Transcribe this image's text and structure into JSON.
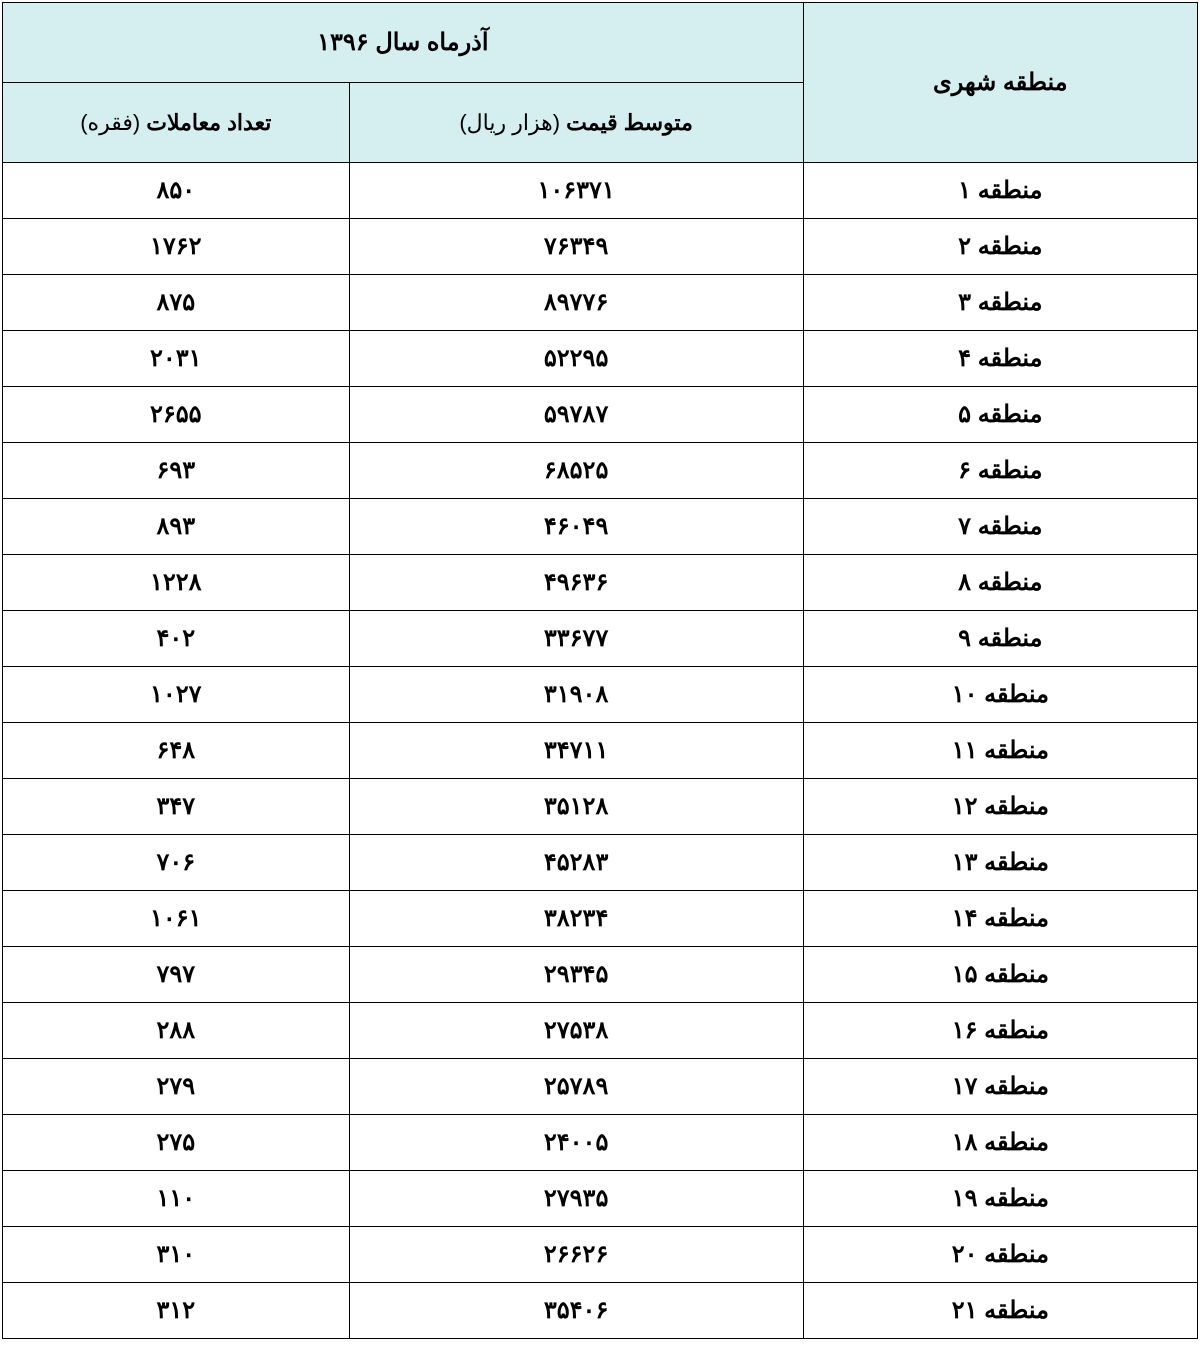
{
  "table": {
    "type": "table",
    "background_color": "#ffffff",
    "border_color": "#000000",
    "header_bg": "#d5eef0",
    "text_color": "#000000",
    "font_family": "Tahoma",
    "header_fontsize": 24,
    "cell_fontsize": 24,
    "top_header": "آذرماه سال ۱۳۹۶",
    "columns": {
      "region": {
        "label": "منطقه شهری",
        "width_pct": 33
      },
      "price": {
        "label_bold": "متوسط قیمت",
        "label_light": " (هزار ریال)",
        "width_pct": 38
      },
      "count": {
        "label_bold": "تعداد معاملات",
        "label_light": " (فقره)",
        "width_pct": 29
      }
    },
    "rows": [
      {
        "region": "منطقه ۱",
        "price": "۱۰۶۳۷۱",
        "count": "۸۵۰"
      },
      {
        "region": "منطقه ۲",
        "price": "۷۶۳۴۹",
        "count": "۱۷۶۲"
      },
      {
        "region": "منطقه ۳",
        "price": "۸۹۷۷۶",
        "count": "۸۷۵"
      },
      {
        "region": "منطقه ۴",
        "price": "۵۲۲۹۵",
        "count": "۲۰۳۱"
      },
      {
        "region": "منطقه ۵",
        "price": "۵۹۷۸۷",
        "count": "۲۶۵۵"
      },
      {
        "region": "منطقه ۶",
        "price": "۶۸۵۲۵",
        "count": "۶۹۳"
      },
      {
        "region": "منطقه ۷",
        "price": "۴۶۰۴۹",
        "count": "۸۹۳"
      },
      {
        "region": "منطقه ۸",
        "price": "۴۹۶۳۶",
        "count": "۱۲۲۸"
      },
      {
        "region": "منطقه ۹",
        "price": "۳۳۶۷۷",
        "count": "۴۰۲"
      },
      {
        "region": "منطقه ۱۰",
        "price": "۳۱۹۰۸",
        "count": "۱۰۲۷"
      },
      {
        "region": "منطقه ۱۱",
        "price": "۳۴۷۱۱",
        "count": "۶۴۸"
      },
      {
        "region": "منطقه ۱۲",
        "price": "۳۵۱۲۸",
        "count": "۳۴۷"
      },
      {
        "region": "منطقه ۱۳",
        "price": "۴۵۲۸۳",
        "count": "۷۰۶"
      },
      {
        "region": "منطقه ۱۴",
        "price": "۳۸۲۳۴",
        "count": "۱۰۶۱"
      },
      {
        "region": "منطقه ۱۵",
        "price": "۲۹۳۴۵",
        "count": "۷۹۷"
      },
      {
        "region": "منطقه ۱۶",
        "price": "۲۷۵۳۸",
        "count": "۲۸۸"
      },
      {
        "region": "منطقه ۱۷",
        "price": "۲۵۷۸۹",
        "count": "۲۷۹"
      },
      {
        "region": "منطقه ۱۸",
        "price": "۲۴۰۰۵",
        "count": "۲۷۵"
      },
      {
        "region": "منطقه ۱۹",
        "price": "۲۷۹۳۵",
        "count": "۱۱۰"
      },
      {
        "region": "منطقه ۲۰",
        "price": "۲۶۶۲۶",
        "count": "۳۱۰"
      },
      {
        "region": "منطقه ۲۱",
        "price": "۳۵۴۰۶",
        "count": "۳۱۲"
      }
    ]
  }
}
